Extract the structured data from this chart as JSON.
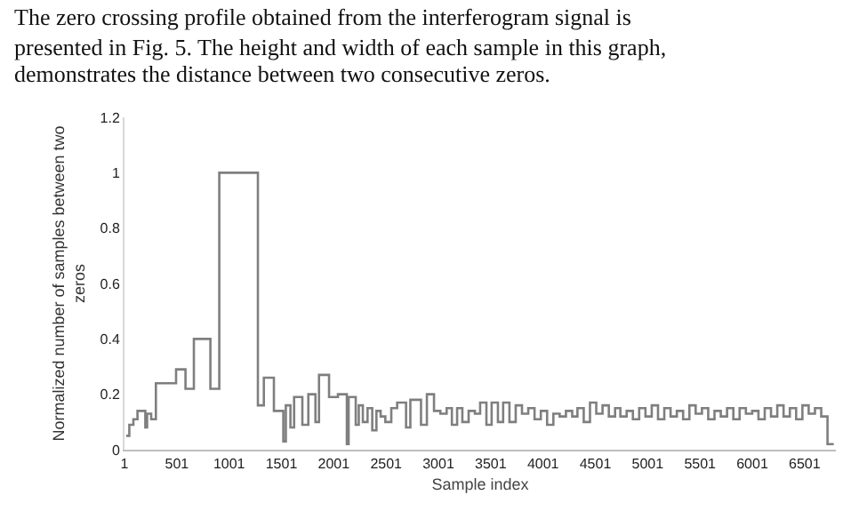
{
  "chart_data": {
    "type": "step",
    "annotations": [
      "The zero crossing profile obtained from the interferogram signal is",
      "presented in Fig. 5. The height and width of each sample in this graph,",
      "demonstrates the distance between two consecutive zeros."
    ],
    "xlabel": "Sample index",
    "ylabel": "Normalized number of samples between two zeros",
    "x": [
      18,
      47,
      86,
      125,
      200,
      217,
      256,
      301,
      494,
      584,
      664,
      822,
      907,
      1276,
      1333,
      1429,
      1519,
      1543,
      1587,
      1622,
      1701,
      1758,
      1826,
      1860,
      1956,
      2041,
      2126,
      2143,
      2211,
      2240,
      2279,
      2324,
      2369,
      2409,
      2449,
      2494,
      2551,
      2607,
      2692,
      2733,
      2835,
      2891,
      2959,
      3020,
      3080,
      3130,
      3180,
      3230,
      3290,
      3350,
      3400,
      3460,
      3510,
      3570,
      3620,
      3680,
      3740,
      3800,
      3860,
      3920,
      3980,
      4040,
      4100,
      4160,
      4220,
      4280,
      4330,
      4390,
      4450,
      4510,
      4570,
      4630,
      4690,
      4740,
      4800,
      4860,
      4920,
      4980,
      5040,
      5100,
      5160,
      5220,
      5280,
      5340,
      5400,
      5460,
      5520,
      5580,
      5640,
      5700,
      5760,
      5820,
      5880,
      5940,
      6000,
      6060,
      6120,
      6180,
      6240,
      6300,
      6360,
      6420,
      6480,
      6540,
      6600,
      6660,
      6720,
      6780
    ],
    "series": [
      {
        "color": "#7f7f7f",
        "values": [
          0.05,
          0.09,
          0.11,
          0.14,
          0.08,
          0.13,
          0.11,
          0.24,
          0.29,
          0.22,
          0.4,
          0.22,
          1.0,
          0.16,
          0.26,
          0.14,
          0.03,
          0.16,
          0.08,
          0.19,
          0.09,
          0.2,
          0.1,
          0.27,
          0.19,
          0.2,
          0.02,
          0.19,
          0.09,
          0.16,
          0.1,
          0.15,
          0.07,
          0.14,
          0.12,
          0.1,
          0.15,
          0.17,
          0.08,
          0.18,
          0.09,
          0.2,
          0.14,
          0.13,
          0.15,
          0.09,
          0.15,
          0.1,
          0.14,
          0.13,
          0.17,
          0.09,
          0.17,
          0.1,
          0.17,
          0.1,
          0.16,
          0.13,
          0.15,
          0.11,
          0.14,
          0.09,
          0.13,
          0.12,
          0.14,
          0.12,
          0.15,
          0.1,
          0.17,
          0.13,
          0.16,
          0.12,
          0.15,
          0.12,
          0.14,
          0.11,
          0.15,
          0.12,
          0.16,
          0.11,
          0.15,
          0.12,
          0.14,
          0.11,
          0.16,
          0.13,
          0.15,
          0.11,
          0.14,
          0.12,
          0.15,
          0.11,
          0.15,
          0.13,
          0.14,
          0.11,
          0.15,
          0.12,
          0.16,
          0.12,
          0.15,
          0.11,
          0.16,
          0.13,
          0.15,
          0.12,
          0.02,
          0.02
        ]
      }
    ],
    "xlim": [
      1,
      6800
    ],
    "xticks": [
      1,
      501,
      1001,
      1501,
      2001,
      2501,
      3001,
      3501,
      4001,
      4501,
      5001,
      5501,
      6001,
      6501
    ],
    "ylim": [
      0,
      1.2
    ],
    "yticks": [
      0,
      {
        "value": 0.2,
        "label": "0.2"
      },
      {
        "value": 0.4,
        "label": "0.4"
      },
      {
        "value": 0.6,
        "label": "0.6"
      },
      {
        "value": 0.8,
        "label": "0.8"
      },
      1,
      {
        "value": 1.2,
        "label": "1.2"
      }
    ],
    "marker": "none"
  }
}
